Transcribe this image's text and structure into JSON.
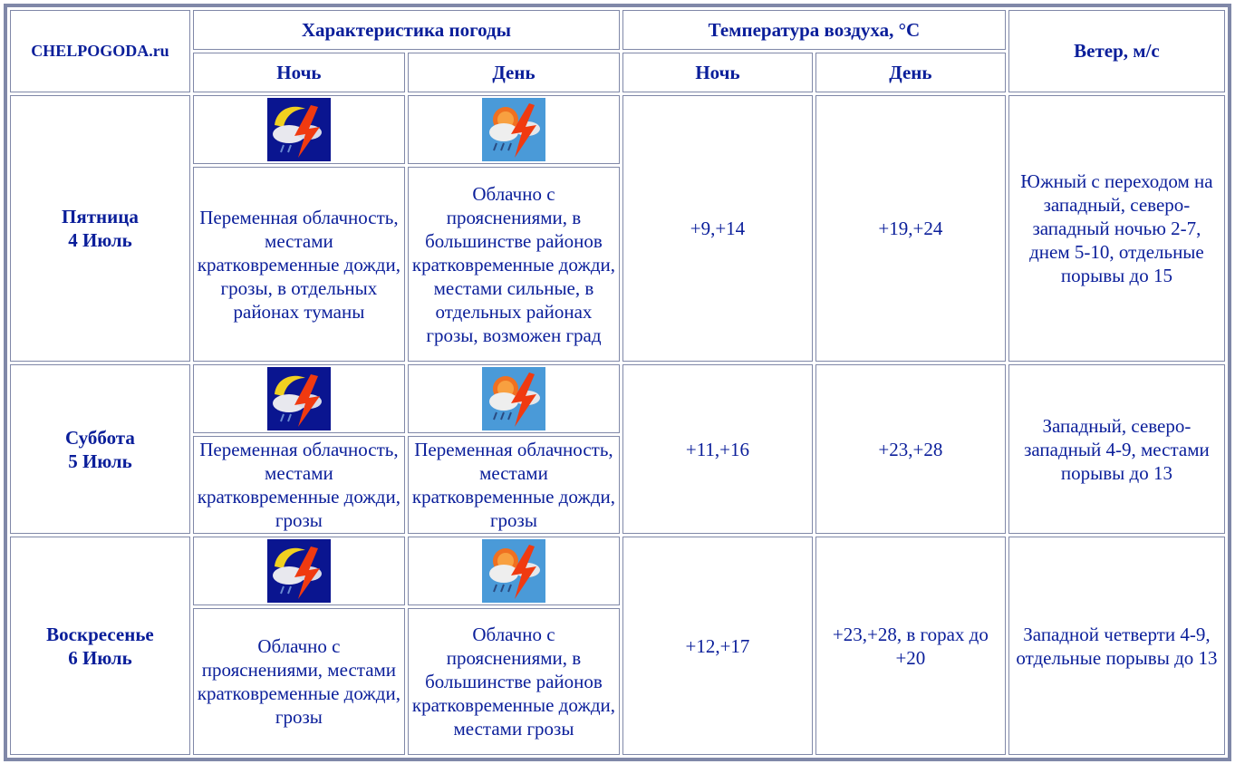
{
  "header": {
    "site": "CHELPOGODA.ru",
    "weather_char": "Характеристика погоды",
    "air_temp": "Температура воздуха, °C",
    "wind": "Ветер, м/с",
    "night": "Ночь",
    "day": "День"
  },
  "icons": {
    "night": "night-thunderstorm-icon",
    "day": "day-thunderstorm-icon"
  },
  "colors": {
    "text": "#0a1e9a",
    "border": "#8088a8"
  },
  "rows": [
    {
      "weekday": "Пятница",
      "date": "4 Июль",
      "night_desc": "Переменная облачность, местами кратковременные дожди, грозы, в отдельных районах туманы",
      "day_desc": "Облачно с прояснениями, в большинстве районов кратковременные дожди, местами сильные, в отдельных районах грозы, возможен град",
      "t_night": "+9,+14",
      "t_day": "+19,+24",
      "wind": "Южный с переходом на западный, северо-западный ночью 2-7, днем 5-10, отдельные порывы до 15"
    },
    {
      "weekday": "Суббота",
      "date": "5 Июль",
      "night_desc": "Переменная облачность, местами кратковременные дожди, грозы",
      "day_desc": "Переменная облачность, местами кратковременные дожди, грозы",
      "t_night": "+11,+16",
      "t_day": "+23,+28",
      "wind": "Западный, северо-западный 4-9, местами порывы до 13"
    },
    {
      "weekday": "Воскресенье",
      "date": "6 Июль",
      "night_desc": "Облачно с прояснениями, местами кратковременные дожди, грозы",
      "day_desc": "Облачно с прояснениями, в большинстве районов кратковременные дожди, местами грозы",
      "t_night": "+12,+17",
      "t_day": "+23,+28, в горах до +20",
      "wind": "Западной четверти 4-9, отдельные порывы до 13"
    }
  ]
}
